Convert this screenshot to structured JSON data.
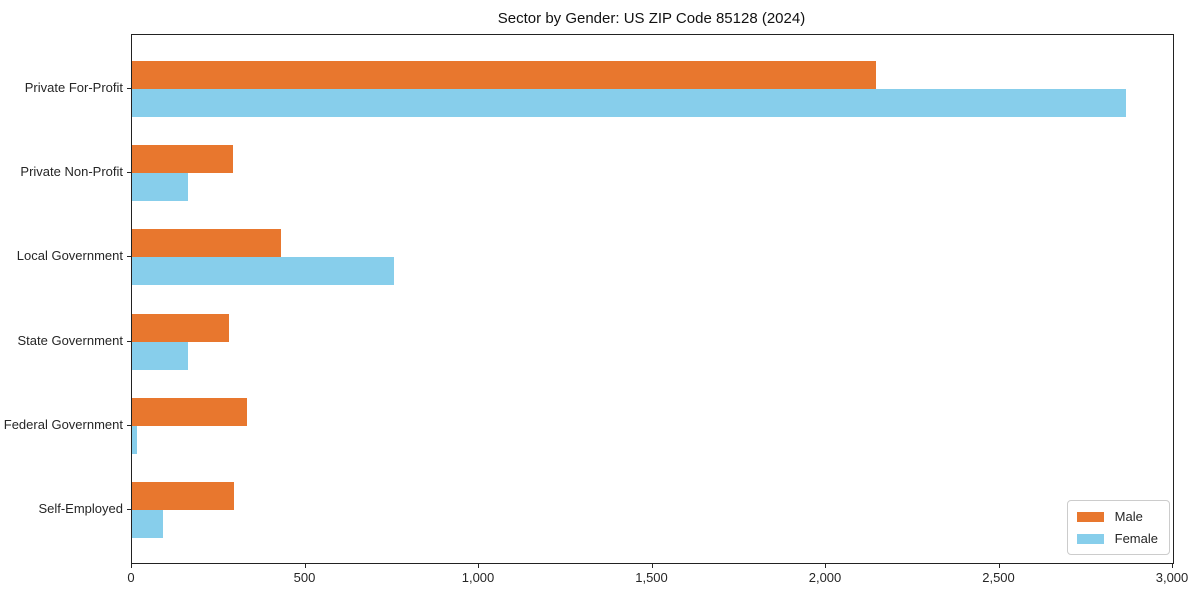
{
  "title": "Sector by Gender: US ZIP Code 85128 (2024)",
  "colors": {
    "male": "#e8772e",
    "female": "#87ceeb",
    "spine": "#222222",
    "tick": "#262626",
    "legend_border": "#cccccc"
  },
  "legend": {
    "entries": [
      {
        "label": "Male",
        "color": "#e8772e"
      },
      {
        "label": "Female",
        "color": "#87ceeb"
      }
    ],
    "position": "lower right"
  },
  "chart_data": {
    "type": "bar",
    "orientation": "horizontal",
    "title": "Sector by Gender: US ZIP Code 85128 (2024)",
    "xlabel": "",
    "ylabel": "",
    "categories": [
      "Private For-Profit",
      "Private Non-Profit",
      "Local Government",
      "State Government",
      "Federal Government",
      "Self-Employed"
    ],
    "series": [
      {
        "name": "Male",
        "color": "#e8772e",
        "values": [
          2145,
          290,
          430,
          280,
          330,
          295
        ]
      },
      {
        "name": "Female",
        "color": "#87ceeb",
        "values": [
          2865,
          160,
          755,
          160,
          15,
          90
        ]
      }
    ],
    "xlim": [
      0,
      3000
    ],
    "xticks": [
      0,
      500,
      1000,
      1500,
      2000,
      2500,
      3000
    ],
    "xtick_labels": [
      "0",
      "500",
      "1,000",
      "1,500",
      "2,000",
      "2,500",
      "3,000"
    ],
    "grid": false,
    "legend_position": "lower right"
  }
}
